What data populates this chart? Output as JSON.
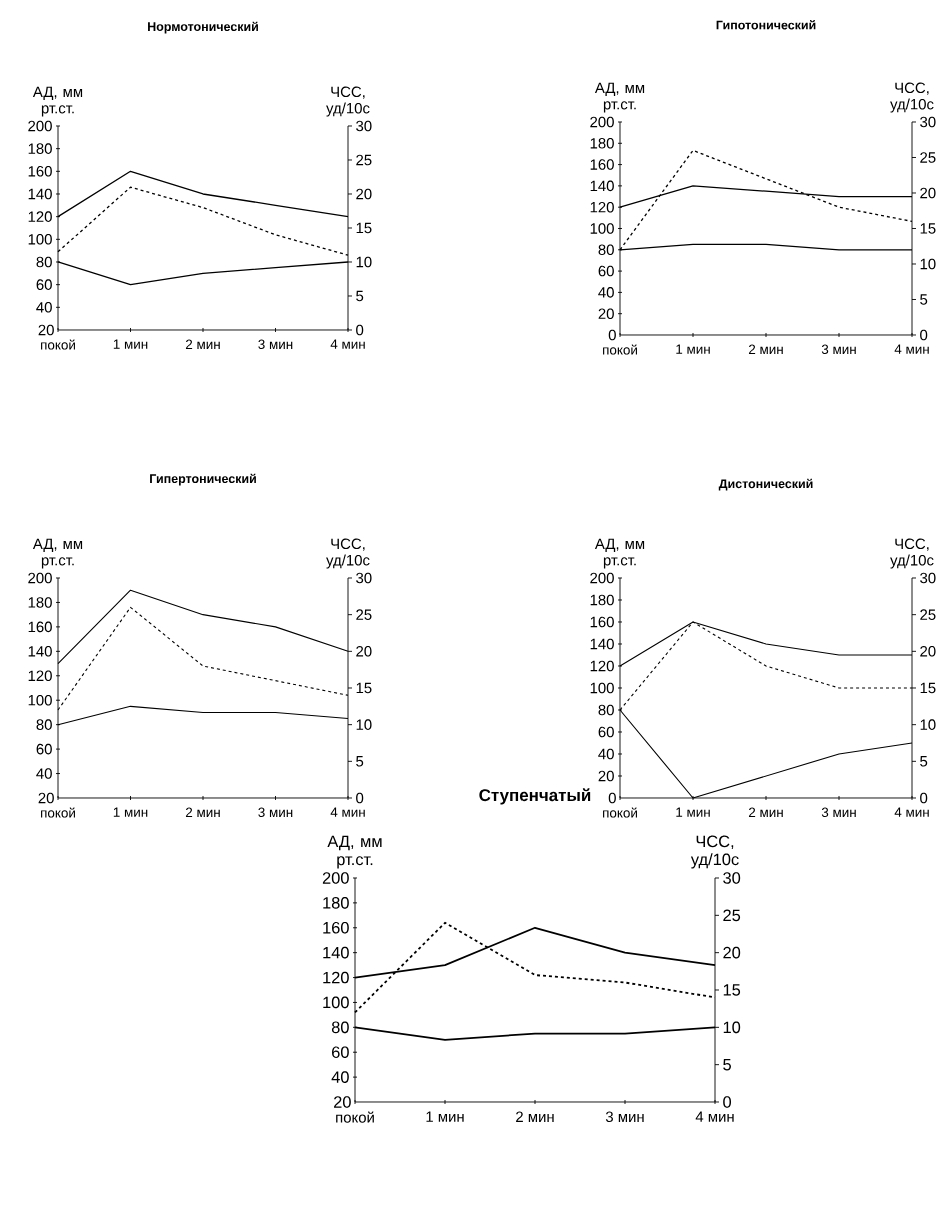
{
  "chart_data": [
    {
      "type": "line",
      "title": "Нормотонический",
      "ylabel": "АД, мм рт.ст.",
      "y2label": "ЧСС, уд/10с",
      "categories": [
        "покой",
        "1 мин",
        "2 мин",
        "3 мин",
        "4 мин"
      ],
      "ylim": [
        20,
        200
      ],
      "yticks": [
        20,
        40,
        60,
        80,
        100,
        120,
        140,
        160,
        180,
        200
      ],
      "y2lim": [
        0,
        30
      ],
      "y2ticks": [
        0,
        5,
        10,
        15,
        20,
        25,
        30
      ],
      "series": [
        {
          "color": "#000000",
          "line_style": "solid",
          "values": [
            120,
            160,
            140,
            130,
            120
          ]
        },
        {
          "color": "#000000",
          "line_style": "solid",
          "values": [
            80,
            60,
            70,
            75,
            80
          ]
        },
        {
          "color": "#000000",
          "line_style": "dashed",
          "axis": "y2",
          "values": [
            11.5,
            21,
            18,
            14,
            11
          ]
        }
      ]
    },
    {
      "type": "line",
      "title": "Гипотонический",
      "ylabel": "АД, мм рт.ст.",
      "y2label": "ЧСС, уд/10с",
      "categories": [
        "покой",
        "1 мин",
        "2 мин",
        "3 мин",
        "4 мин"
      ],
      "ylim": [
        0,
        200
      ],
      "yticks": [
        0,
        20,
        40,
        60,
        80,
        100,
        120,
        140,
        160,
        180,
        200
      ],
      "y2lim": [
        0,
        30
      ],
      "y2ticks": [
        0,
        5,
        10,
        15,
        20,
        25,
        30
      ],
      "series": [
        {
          "color": "#000000",
          "line_style": "solid",
          "values": [
            120,
            140,
            135,
            130,
            130
          ]
        },
        {
          "color": "#000000",
          "line_style": "solid",
          "values": [
            80,
            85,
            85,
            80,
            80
          ]
        },
        {
          "color": "#000000",
          "line_style": "dashed",
          "axis": "y2",
          "values": [
            12,
            26,
            22,
            18,
            16
          ]
        }
      ]
    },
    {
      "type": "line",
      "title": "Гипертонический",
      "ylabel": "АД, мм рт.ст.",
      "y2label": "ЧСС, уд/10с",
      "categories": [
        "покой",
        "1 мин",
        "2 мин",
        "3 мин",
        "4 мин"
      ],
      "ylim": [
        20,
        200
      ],
      "yticks": [
        20,
        40,
        60,
        80,
        100,
        120,
        140,
        160,
        180,
        200
      ],
      "y2lim": [
        0,
        30
      ],
      "y2ticks": [
        0,
        5,
        10,
        15,
        20,
        25,
        30
      ],
      "series": [
        {
          "color": "#000000",
          "line_style": "solid",
          "values": [
            130,
            190,
            170,
            160,
            140
          ]
        },
        {
          "color": "#000000",
          "line_style": "solid",
          "values": [
            80,
            95,
            90,
            90,
            85
          ]
        },
        {
          "color": "#000000",
          "line_style": "dashed",
          "axis": "y2",
          "values": [
            12,
            26,
            18,
            16,
            14
          ]
        }
      ]
    },
    {
      "type": "line",
      "title": "Дистонический",
      "ylabel": "АД, мм рт.ст.",
      "y2label": "ЧСС, уд/10с",
      "categories": [
        "покой",
        "1 мин",
        "2 мин",
        "3 мин",
        "4 мин"
      ],
      "ylim": [
        0,
        200
      ],
      "yticks": [
        0,
        20,
        40,
        60,
        80,
        100,
        120,
        140,
        160,
        180,
        200
      ],
      "y2lim": [
        0,
        30
      ],
      "y2ticks": [
        0,
        5,
        10,
        15,
        20,
        25,
        30
      ],
      "series": [
        {
          "color": "#000000",
          "line_style": "solid",
          "values": [
            120,
            160,
            140,
            130,
            130
          ]
        },
        {
          "color": "#000000",
          "line_style": "solid",
          "values": [
            80,
            0,
            20,
            40,
            50
          ]
        },
        {
          "color": "#000000",
          "line_style": "dashed",
          "axis": "y2",
          "values": [
            12,
            24,
            18,
            15,
            15
          ]
        }
      ]
    },
    {
      "type": "line",
      "title": "Ступенчатый",
      "ylabel": "АД, мм рт.ст.",
      "y2label": "ЧСС, уд/10с",
      "categories": [
        "покой",
        "1 мин",
        "2 мин",
        "3 мин",
        "4 мин"
      ],
      "ylim": [
        20,
        200
      ],
      "yticks": [
        20,
        40,
        60,
        80,
        100,
        120,
        140,
        160,
        180,
        200
      ],
      "y2lim": [
        0,
        30
      ],
      "y2ticks": [
        0,
        5,
        10,
        15,
        20,
        25,
        30
      ],
      "series": [
        {
          "color": "#000000",
          "line_style": "solid",
          "values": [
            120,
            130,
            160,
            140,
            130
          ]
        },
        {
          "color": "#000000",
          "line_style": "solid",
          "values": [
            80,
            70,
            75,
            75,
            80
          ]
        },
        {
          "color": "#000000",
          "line_style": "dashed",
          "axis": "y2",
          "values": [
            12,
            24,
            17,
            16,
            14
          ]
        }
      ]
    }
  ]
}
